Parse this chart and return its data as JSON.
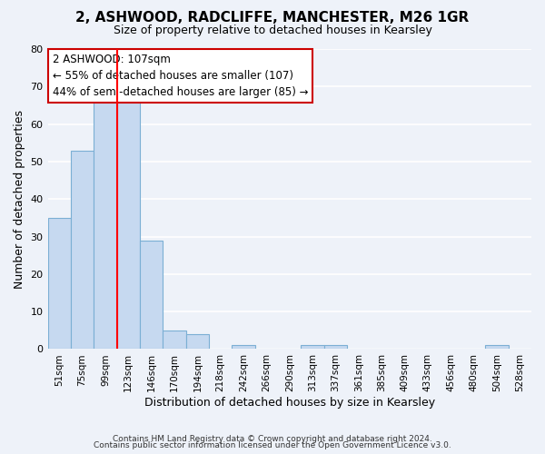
{
  "title": "2, ASHWOOD, RADCLIFFE, MANCHESTER, M26 1GR",
  "subtitle": "Size of property relative to detached houses in Kearsley",
  "xlabel": "Distribution of detached houses by size in Kearsley",
  "ylabel": "Number of detached properties",
  "bin_labels": [
    "51sqm",
    "75sqm",
    "99sqm",
    "123sqm",
    "146sqm",
    "170sqm",
    "194sqm",
    "218sqm",
    "242sqm",
    "266sqm",
    "290sqm",
    "313sqm",
    "337sqm",
    "361sqm",
    "385sqm",
    "409sqm",
    "433sqm",
    "456sqm",
    "480sqm",
    "504sqm",
    "528sqm"
  ],
  "bar_heights": [
    35,
    53,
    67,
    67,
    29,
    5,
    4,
    0,
    1,
    0,
    0,
    1,
    1,
    0,
    0,
    0,
    0,
    0,
    0,
    1,
    0
  ],
  "bar_color": "#c6d9f0",
  "bar_edge_color": "#7bafd4",
  "property_sqm": 107,
  "annotation_text_line1": "2 ASHWOOD: 107sqm",
  "annotation_text_line2": "← 55% of detached houses are smaller (107)",
  "annotation_text_line3": "44% of semi-detached houses are larger (85) →",
  "red_line_x": 2.5,
  "ylim": [
    0,
    80
  ],
  "yticks": [
    0,
    10,
    20,
    30,
    40,
    50,
    60,
    70,
    80
  ],
  "footer_line1": "Contains HM Land Registry data © Crown copyright and database right 2024.",
  "footer_line2": "Contains public sector information licensed under the Open Government Licence v3.0.",
  "background_color": "#eef2f9",
  "plot_bg_color": "#eef2f9",
  "annotation_box_color": "#ffffff",
  "annotation_box_edge": "#cc0000"
}
